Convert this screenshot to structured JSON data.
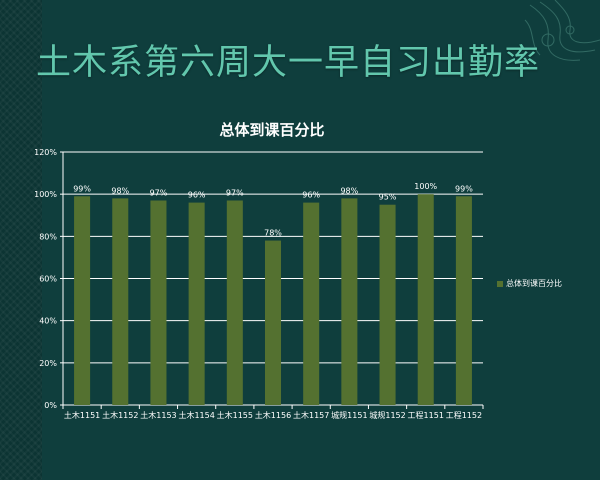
{
  "slide": {
    "title": "土木系第六周大一早自习出勤率"
  },
  "chart_data": {
    "type": "bar",
    "title": "总体到课百分比",
    "categories": [
      "土木1151",
      "土木1152",
      "土木1153",
      "土木1154",
      "土木1155",
      "土木1156",
      "土木1157",
      "城规1151",
      "城规1152",
      "工程1151",
      "工程1152"
    ],
    "series": [
      {
        "name": "总体到课百分比",
        "values": [
          99,
          98,
          97,
          96,
          97,
          78,
          96,
          98,
          95,
          100,
          99
        ],
        "data_labels": [
          "99%",
          "98%",
          "97%",
          "96%",
          "97%",
          "78%",
          "96%",
          "98%",
          "95%",
          "100%",
          "99%"
        ]
      }
    ],
    "ylim": [
      0,
      120
    ],
    "y_ticks": [
      0,
      20,
      40,
      60,
      80,
      100,
      120
    ],
    "y_tick_labels": [
      "0%",
      "20%",
      "40%",
      "60%",
      "80%",
      "100%",
      "120%"
    ],
    "grid": true,
    "legend_position": "right",
    "colors": {
      "bar": "#547130",
      "grid": "#ffffff",
      "text": "#ffffff"
    }
  }
}
